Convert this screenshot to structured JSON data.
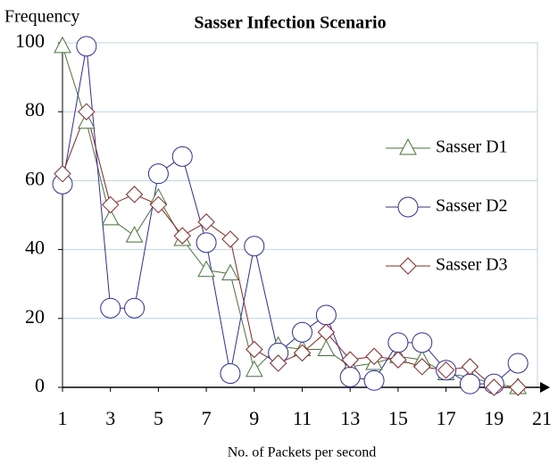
{
  "chart_data": {
    "type": "line",
    "title": "Sasser Infection Scenario",
    "ylabel": "Frequency",
    "xlabel": "No. of Packets per second",
    "x": [
      1,
      2,
      3,
      4,
      5,
      6,
      7,
      8,
      9,
      10,
      11,
      12,
      13,
      14,
      15,
      16,
      17,
      18,
      19,
      20
    ],
    "series": [
      {
        "name": "Sasser D1",
        "color": "#3f7a2e",
        "marker": "triangle",
        "values": [
          99,
          77,
          49,
          44,
          55,
          43,
          34,
          33,
          5,
          12,
          11,
          11,
          6,
          7,
          9,
          8,
          4,
          3,
          1,
          0
        ]
      },
      {
        "name": "Sasser D2",
        "color": "#2828d0",
        "marker": "circle",
        "values": [
          59,
          99,
          23,
          23,
          62,
          67,
          42,
          4,
          41,
          10,
          16,
          21,
          3,
          2,
          13,
          13,
          5,
          1,
          1,
          7
        ]
      },
      {
        "name": "Sasser D3",
        "color": "#a01c1c",
        "marker": "diamond",
        "values": [
          62,
          80,
          53,
          56,
          53,
          44,
          48,
          43,
          11,
          7,
          10,
          16,
          8,
          9,
          8,
          6,
          5,
          6,
          0,
          0
        ]
      }
    ],
    "xlim": [
      1,
      21
    ],
    "xticks": [
      1,
      3,
      5,
      7,
      9,
      11,
      13,
      15,
      17,
      19,
      21
    ],
    "ylim": [
      0,
      100
    ],
    "yticks": [
      0,
      20,
      40,
      60,
      80,
      100
    ],
    "grid": true,
    "legend": "right"
  }
}
